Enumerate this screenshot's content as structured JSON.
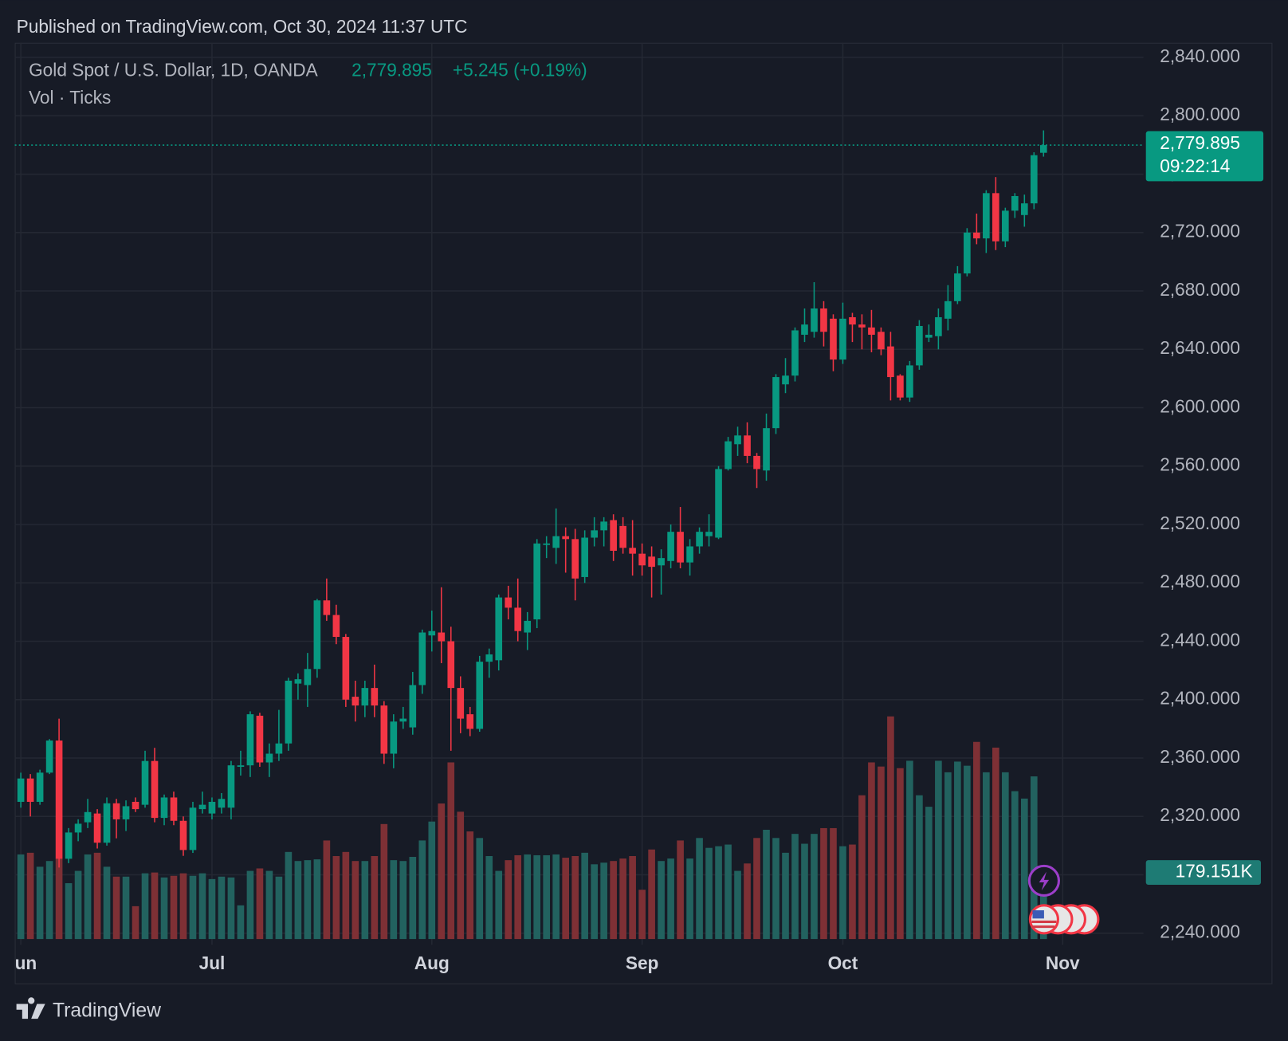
{
  "header": {
    "published": "Published on TradingView.com, Oct 30, 2024 11:37 UTC"
  },
  "chart_data": {
    "type": "candlestick",
    "title": "Gold Spot / U.S. Dollar, 1D, OANDA",
    "last_label": "2,779.895",
    "change_label": "+5.245 (+0.19%)",
    "countdown": "09:22:14",
    "volume_title": "Vol · Ticks",
    "last_volume_label": "179.151K",
    "up_color": "#089981",
    "down_color": "#f23645",
    "volume_up_color": "#22625f",
    "volume_down_color": "#7e3035",
    "grid": true,
    "ylim": [
      2236,
      2850
    ],
    "yticks": [
      {
        "value": 2240,
        "label": "2,240.000"
      },
      {
        "value": 2280,
        "label": "2,280.000"
      },
      {
        "value": 2320,
        "label": "2,320.000"
      },
      {
        "value": 2360,
        "label": "2,360.000"
      },
      {
        "value": 2400,
        "label": "2,400.000"
      },
      {
        "value": 2440,
        "label": "2,440.000"
      },
      {
        "value": 2480,
        "label": "2,480.000"
      },
      {
        "value": 2520,
        "label": "2,520.000"
      },
      {
        "value": 2560,
        "label": "2,560.000"
      },
      {
        "value": 2600,
        "label": "2,600.000"
      },
      {
        "value": 2640,
        "label": "2,640.000"
      },
      {
        "value": 2680,
        "label": "2,680.000"
      },
      {
        "value": 2720,
        "label": "2,720.000"
      },
      {
        "value": 2760,
        "label": "2,760.000"
      },
      {
        "value": 2800,
        "label": "2,800.000"
      },
      {
        "value": 2840,
        "label": "2,840.000"
      }
    ],
    "xlim": [
      -0.46,
      117.45
    ],
    "xticks": [
      {
        "value": 0,
        "label": "Jun"
      },
      {
        "value": 20,
        "label": "Jul"
      },
      {
        "value": 43,
        "label": "Aug"
      },
      {
        "value": 65,
        "label": "Sep"
      },
      {
        "value": 86,
        "label": "Oct"
      },
      {
        "value": 109,
        "label": "Nov"
      }
    ],
    "volume_ylim": [
      0,
      2412000
    ],
    "open": [
      2330,
      2346,
      2330,
      2350,
      2372,
      2291,
      2309,
      2316,
      2322,
      2302,
      2329,
      2318,
      2330,
      2328,
      2358,
      2319,
      2333,
      2317,
      2297,
      2325,
      2322,
      2326,
      2326,
      2354,
      2355,
      2389,
      2357,
      2363,
      2370,
      2411,
      2410,
      2421,
      2468,
      2458,
      2443,
      2402,
      2396,
      2408,
      2396,
      2363,
      2385,
      2381,
      2410,
      2444,
      2446,
      2440,
      2408,
      2390,
      2380,
      2426,
      2427,
      2470,
      2463,
      2446,
      2455,
      2506,
      2504,
      2512,
      2510,
      2484,
      2511,
      2516,
      2523,
      2519,
      2504,
      2500,
      2498,
      2492,
      2495,
      2515,
      2494,
      2505,
      2512,
      2511,
      2558,
      2575,
      2581,
      2567,
      2557,
      2586,
      2616,
      2622,
      2650,
      2652,
      2668,
      2661,
      2633,
      2662,
      2657,
      2655,
      2652,
      2642,
      2622,
      2607,
      2629,
      2648,
      2649,
      2661,
      2673,
      2692,
      2720,
      2716,
      2747,
      2714,
      2735,
      2732,
      2740,
      2774.65
    ],
    "high": [
      2350,
      2349,
      2352,
      2373,
      2387,
      2312,
      2318,
      2332,
      2325,
      2333,
      2332,
      2331,
      2333,
      2365,
      2367,
      2335,
      2337,
      2320,
      2330,
      2337,
      2333,
      2336,
      2358,
      2365,
      2392,
      2391,
      2370,
      2393,
      2415,
      2418,
      2432,
      2469,
      2483,
      2465,
      2445,
      2413,
      2413,
      2424,
      2399,
      2390,
      2395,
      2419,
      2448,
      2461,
      2477,
      2450,
      2416,
      2395,
      2430,
      2435,
      2472,
      2478,
      2483,
      2460,
      2510,
      2512,
      2531,
      2518,
      2517,
      2516,
      2525,
      2525,
      2527,
      2525,
      2523,
      2507,
      2505,
      2503,
      2520,
      2532,
      2510,
      2518,
      2527,
      2560,
      2580,
      2587,
      2590,
      2569,
      2596,
      2623,
      2634,
      2655,
      2668,
      2686,
      2673,
      2664,
      2672,
      2665,
      2664,
      2667,
      2655,
      2652,
      2623,
      2632,
      2660,
      2657,
      2668,
      2684,
      2697,
      2723,
      2733,
      2749,
      2758,
      2737,
      2747,
      2746,
      2775,
      2790
    ],
    "low": [
      2326,
      2320,
      2328,
      2349,
      2285,
      2288,
      2303,
      2312,
      2298,
      2300,
      2305,
      2310,
      2323,
      2326,
      2316,
      2314,
      2314,
      2293,
      2295,
      2322,
      2318,
      2322,
      2318,
      2348,
      2347,
      2354,
      2347,
      2358,
      2365,
      2400,
      2395,
      2415,
      2454,
      2438,
      2395,
      2385,
      2388,
      2388,
      2356,
      2353,
      2380,
      2376,
      2404,
      2433,
      2425,
      2365,
      2377,
      2375,
      2378,
      2415,
      2420,
      2455,
      2440,
      2434,
      2449,
      2497,
      2493,
      2487,
      2468,
      2480,
      2505,
      2505,
      2495,
      2500,
      2485,
      2485,
      2470,
      2472,
      2490,
      2490,
      2485,
      2500,
      2505,
      2510,
      2557,
      2567,
      2562,
      2545,
      2550,
      2582,
      2610,
      2618,
      2645,
      2648,
      2642,
      2625,
      2630,
      2645,
      2640,
      2638,
      2636,
      2605,
      2605,
      2604,
      2626,
      2645,
      2640,
      2653,
      2671,
      2690,
      2712,
      2706,
      2708,
      2710,
      2730,
      2724,
      2736,
      2772
    ],
    "close": [
      2346,
      2330,
      2350,
      2372,
      2291,
      2309,
      2315,
      2323,
      2302,
      2329,
      2318,
      2327,
      2325,
      2358,
      2319,
      2333,
      2317,
      2297,
      2326,
      2328,
      2330,
      2332,
      2355,
      2355,
      2390,
      2357,
      2363,
      2370,
      2413,
      2414,
      2421,
      2468,
      2458,
      2443,
      2400,
      2396,
      2408,
      2396,
      2363,
      2385,
      2387,
      2410,
      2446,
      2447,
      2440,
      2408,
      2387,
      2380,
      2426,
      2431,
      2470,
      2463,
      2447,
      2454,
      2507,
      2507,
      2512,
      2510,
      2483,
      2511,
      2516,
      2522,
      2502,
      2504,
      2500,
      2492,
      2491,
      2497,
      2515,
      2494,
      2505,
      2515,
      2515,
      2558,
      2577,
      2581,
      2567,
      2558,
      2586,
      2621,
      2622,
      2653,
      2657,
      2668,
      2652,
      2633,
      2661,
      2657,
      2655,
      2650,
      2640,
      2621,
      2607,
      2629,
      2656,
      2650,
      2662,
      2673,
      2692,
      2720,
      2716,
      2747,
      2714,
      2735,
      2745,
      2740,
      2773,
      2779.895
    ],
    "volume": [
      227700,
      232200,
      194600,
      210000,
      216700,
      150300,
      183500,
      227700,
      232200,
      194600,
      168000,
      168000,
      88400,
      176900,
      179100,
      165800,
      170200,
      176900,
      170200,
      176900,
      161400,
      168000,
      165800,
      90700,
      183500,
      190100,
      183500,
      168000,
      234400,
      210000,
      212300,
      214500,
      265300,
      223300,
      234400,
      210000,
      210000,
      223300,
      309500,
      212300,
      210000,
      221100,
      265300,
      316200,
      364800,
      475400,
      342700,
      289600,
      272000,
      223300,
      183500,
      212300,
      225500,
      227700,
      225500,
      225500,
      227700,
      218900,
      223300,
      232200,
      201200,
      205600,
      210000,
      216700,
      223300,
      132700,
      241000,
      210000,
      216700,
      265300,
      216700,
      272000,
      245400,
      249800,
      254300,
      183500,
      203400,
      272000,
      294100,
      272000,
      232200,
      283000,
      256500,
      283000,
      298500,
      298500,
      249800,
      254300,
      386900,
      475400,
      464300,
      599200,
      459900,
      479800,
      386900,
      356000,
      479800,
      448800,
      477600,
      466500,
      530600,
      448800,
      515200,
      448800,
      398000,
      378100,
      437800,
      179151
    ]
  },
  "footer": {
    "brand": "TradingView"
  }
}
